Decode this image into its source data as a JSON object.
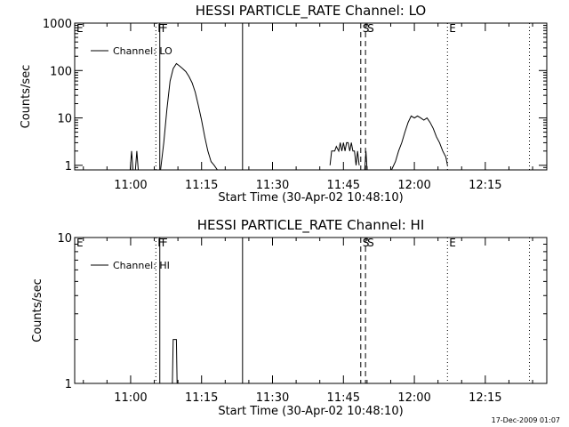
{
  "chart_data": [
    {
      "type": "line",
      "title": "HESSI PARTICLE_RATE Channel: LO",
      "xlabel": "Start Time (30-Apr-02 10:48:10)",
      "ylabel": "Counts/sec",
      "yscale": "log",
      "xlim": [
        "10:48:10",
        "12:28:00"
      ],
      "ylim": [
        0.8,
        1000
      ],
      "x_ticks": [
        "11:00",
        "11:15",
        "11:30",
        "11:45",
        "12:00",
        "12:15"
      ],
      "y_ticks": [
        "1",
        "10",
        "100",
        "1000"
      ],
      "legend": {
        "placement": "top-left",
        "entries": [
          "Channel: LO"
        ]
      },
      "flags": [
        {
          "label": "E",
          "time": "10:48:10",
          "style": "dotted",
          "has_line": false
        },
        {
          "label": "F",
          "time": "11:05:20",
          "style": "dotted"
        },
        {
          "label": "F",
          "time": "11:06:10",
          "style": "solid"
        },
        {
          "label": "",
          "time": "11:23:40",
          "style": "solid"
        },
        {
          "label": "S",
          "time": "11:48:40",
          "style": "dashed"
        },
        {
          "label": "S",
          "time": "11:49:40",
          "style": "dashed"
        },
        {
          "label": "E",
          "time": "12:07:00",
          "style": "dotted"
        },
        {
          "label": "",
          "time": "12:24:20",
          "style": "dotted"
        }
      ],
      "series": [
        {
          "name": "Channel: LO",
          "segments": [
            {
              "x": [
                "10:59:54",
                "11:00:12",
                "11:00:30"
              ],
              "y": [
                0.8,
                2,
                0.8
              ]
            },
            {
              "x": [
                "11:01:00",
                "11:01:18",
                "11:01:36"
              ],
              "y": [
                0.8,
                2,
                0.8
              ]
            },
            {
              "x": [
                "11:06:20",
                "11:07:00",
                "11:07:40",
                "11:08:20",
                "11:09:00",
                "11:09:40",
                "11:10:20",
                "11:11:00",
                "11:11:40",
                "11:12:20",
                "11:13:00",
                "11:13:40",
                "11:14:20",
                "11:15:00",
                "11:15:40",
                "11:16:20",
                "11:17:00",
                "11:17:40",
                "11:18:20",
                "11:19:00"
              ],
              "y": [
                0.8,
                3,
                15,
                60,
                110,
                140,
                125,
                110,
                95,
                75,
                55,
                35,
                18,
                9,
                4,
                2,
                1.2,
                1,
                0.8,
                0.8
              ]
            },
            {
              "x": [
                "11:42:10",
                "11:42:30",
                "11:43:10",
                "11:43:30",
                "11:44:00",
                "11:44:20",
                "11:44:40",
                "11:45:00",
                "11:45:20",
                "11:45:40",
                "11:46:00",
                "11:46:20",
                "11:46:40",
                "11:47:00",
                "11:47:20",
                "11:47:40",
                "11:48:00",
                "11:48:20"
              ],
              "y": [
                1,
                2,
                2,
                2.5,
                2,
                3,
                2,
                3,
                2,
                3,
                3,
                2,
                3,
                2,
                2,
                1,
                2,
                1
              ]
            },
            {
              "x": [
                "11:49:30",
                "11:49:45",
                "11:50:00"
              ],
              "y": [
                0.8,
                2,
                0.8
              ]
            },
            {
              "x": [
                "11:55:10",
                "11:56:00",
                "11:56:40",
                "11:57:20",
                "11:58:00",
                "11:58:40",
                "11:59:20",
                "12:00:00",
                "12:00:40",
                "12:01:20",
                "12:02:00",
                "12:02:40",
                "12:03:20",
                "12:04:00",
                "12:04:40",
                "12:05:20",
                "12:06:00",
                "12:06:40",
                "12:07:00"
              ],
              "y": [
                0.8,
                1.2,
                2,
                3,
                5,
                8,
                11,
                10,
                11,
                10,
                9,
                10,
                8,
                6,
                4,
                3,
                2,
                1.5,
                1
              ]
            }
          ]
        }
      ]
    },
    {
      "type": "line",
      "title": "HESSI PARTICLE_RATE Channel: HI",
      "xlabel": "Start Time (30-Apr-02 10:48:10)",
      "ylabel": "Counts/sec",
      "yscale": "log",
      "xlim": [
        "10:48:10",
        "12:28:00"
      ],
      "ylim": [
        1,
        10
      ],
      "x_ticks": [
        "11:00",
        "11:15",
        "11:30",
        "11:45",
        "12:00",
        "12:15"
      ],
      "y_ticks": [
        "1",
        "10"
      ],
      "legend": {
        "placement": "top-left",
        "entries": [
          "Channel: HI"
        ]
      },
      "flags": [
        {
          "label": "E",
          "time": "10:48:10",
          "style": "dotted",
          "has_line": false
        },
        {
          "label": "F",
          "time": "11:05:20",
          "style": "dotted"
        },
        {
          "label": "F",
          "time": "11:06:10",
          "style": "solid"
        },
        {
          "label": "",
          "time": "11:23:40",
          "style": "solid"
        },
        {
          "label": "S",
          "time": "11:48:40",
          "style": "dashed"
        },
        {
          "label": "S",
          "time": "11:49:40",
          "style": "dashed"
        },
        {
          "label": "E",
          "time": "12:07:00",
          "style": "dotted"
        },
        {
          "label": "",
          "time": "12:24:20",
          "style": "dotted"
        }
      ],
      "series": [
        {
          "name": "Channel: HI",
          "segments": [
            {
              "x": [
                "11:08:50",
                "11:09:00",
                "11:09:40",
                "11:09:50"
              ],
              "y": [
                1,
                2,
                2,
                1
              ]
            }
          ]
        }
      ]
    }
  ],
  "footer": {
    "timestamp": "17-Dec-2009 01:07"
  }
}
